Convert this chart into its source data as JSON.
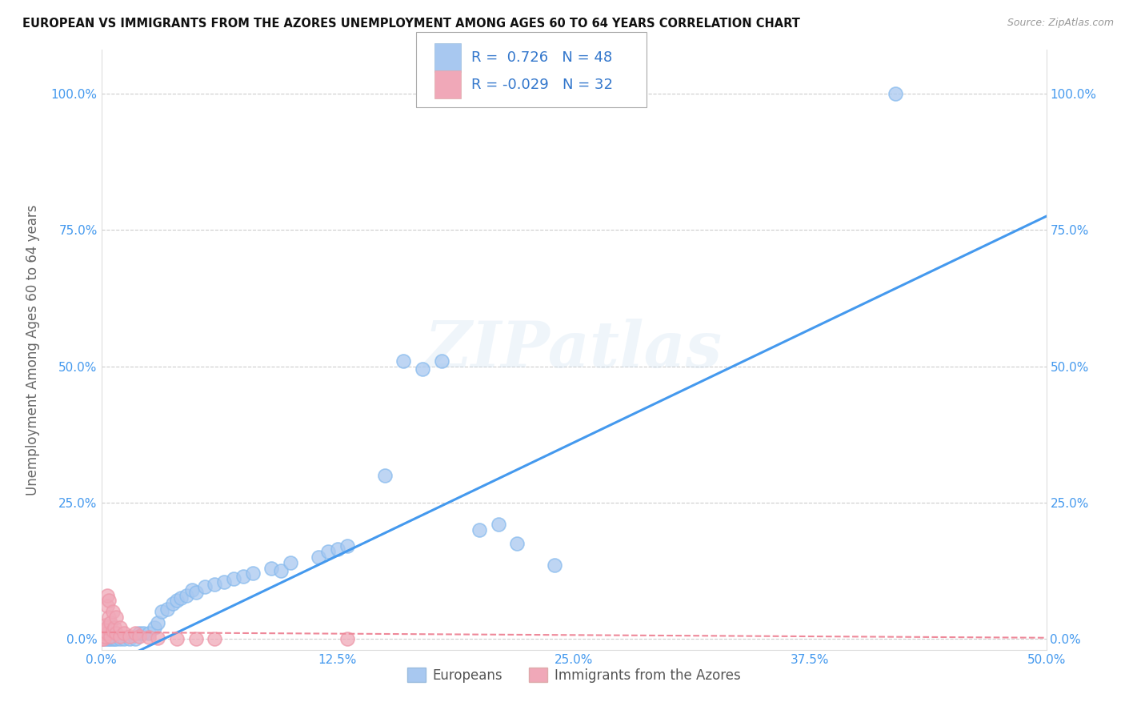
{
  "title": "EUROPEAN VS IMMIGRANTS FROM THE AZORES UNEMPLOYMENT AMONG AGES 60 TO 64 YEARS CORRELATION CHART",
  "source": "Source: ZipAtlas.com",
  "ylabel": "Unemployment Among Ages 60 to 64 years",
  "xlim": [
    0.0,
    0.5
  ],
  "ylim": [
    -0.02,
    1.08
  ],
  "xtick_labels": [
    "0.0%",
    "",
    "12.5%",
    "",
    "25.0%",
    "",
    "37.5%",
    "",
    "50.0%"
  ],
  "xtick_vals": [
    0.0,
    0.0625,
    0.125,
    0.1875,
    0.25,
    0.3125,
    0.375,
    0.4375,
    0.5
  ],
  "ytick_labels": [
    "0.0%",
    "25.0%",
    "50.0%",
    "75.0%",
    "100.0%"
  ],
  "ytick_vals": [
    0.0,
    0.25,
    0.5,
    0.75,
    1.0
  ],
  "legend_labels": [
    "Europeans",
    "Immigrants from the Azores"
  ],
  "R_european": 0.726,
  "N_european": 48,
  "R_azores": -0.029,
  "N_azores": 32,
  "european_color": "#a8c8f0",
  "azores_color": "#f0a8b8",
  "trend_blue": "#4499ee",
  "trend_pink": "#ee8899",
  "watermark": "ZIPatlas",
  "background_color": "#ffffff",
  "european_dots": [
    [
      0.0,
      0.0
    ],
    [
      0.001,
      0.0
    ],
    [
      0.002,
      0.0
    ],
    [
      0.003,
      0.0
    ],
    [
      0.004,
      0.0
    ],
    [
      0.005,
      0.0
    ],
    [
      0.006,
      0.0
    ],
    [
      0.007,
      0.0
    ],
    [
      0.008,
      0.0
    ],
    [
      0.01,
      0.0
    ],
    [
      0.012,
      0.0
    ],
    [
      0.015,
      0.0
    ],
    [
      0.018,
      0.0
    ],
    [
      0.02,
      0.01
    ],
    [
      0.022,
      0.01
    ],
    [
      0.025,
      0.01
    ],
    [
      0.028,
      0.02
    ],
    [
      0.03,
      0.03
    ],
    [
      0.032,
      0.05
    ],
    [
      0.035,
      0.055
    ],
    [
      0.038,
      0.065
    ],
    [
      0.04,
      0.07
    ],
    [
      0.042,
      0.075
    ],
    [
      0.045,
      0.08
    ],
    [
      0.048,
      0.09
    ],
    [
      0.05,
      0.085
    ],
    [
      0.055,
      0.095
    ],
    [
      0.06,
      0.1
    ],
    [
      0.065,
      0.105
    ],
    [
      0.07,
      0.11
    ],
    [
      0.075,
      0.115
    ],
    [
      0.08,
      0.12
    ],
    [
      0.09,
      0.13
    ],
    [
      0.095,
      0.125
    ],
    [
      0.1,
      0.14
    ],
    [
      0.115,
      0.15
    ],
    [
      0.12,
      0.16
    ],
    [
      0.125,
      0.165
    ],
    [
      0.13,
      0.17
    ],
    [
      0.15,
      0.3
    ],
    [
      0.16,
      0.51
    ],
    [
      0.17,
      0.495
    ],
    [
      0.18,
      0.51
    ],
    [
      0.2,
      0.2
    ],
    [
      0.21,
      0.21
    ],
    [
      0.22,
      0.175
    ],
    [
      0.24,
      0.135
    ],
    [
      0.42,
      1.0
    ]
  ],
  "azores_dots": [
    [
      0.0,
      0.0
    ],
    [
      0.0,
      0.005
    ],
    [
      0.001,
      0.0
    ],
    [
      0.001,
      0.01
    ],
    [
      0.002,
      0.005
    ],
    [
      0.002,
      0.015
    ],
    [
      0.002,
      0.025
    ],
    [
      0.003,
      0.01
    ],
    [
      0.003,
      0.02
    ],
    [
      0.003,
      0.06
    ],
    [
      0.003,
      0.08
    ],
    [
      0.004,
      0.04
    ],
    [
      0.004,
      0.07
    ],
    [
      0.005,
      0.005
    ],
    [
      0.005,
      0.03
    ],
    [
      0.006,
      0.015
    ],
    [
      0.006,
      0.05
    ],
    [
      0.007,
      0.02
    ],
    [
      0.008,
      0.01
    ],
    [
      0.008,
      0.04
    ],
    [
      0.01,
      0.005
    ],
    [
      0.01,
      0.02
    ],
    [
      0.012,
      0.01
    ],
    [
      0.015,
      0.005
    ],
    [
      0.018,
      0.01
    ],
    [
      0.02,
      0.005
    ],
    [
      0.025,
      0.003
    ],
    [
      0.03,
      0.002
    ],
    [
      0.04,
      0.0
    ],
    [
      0.05,
      0.0
    ],
    [
      0.06,
      0.0
    ],
    [
      0.13,
      0.0
    ]
  ],
  "trend_line_blue": [
    [
      0.0,
      -0.055
    ],
    [
      0.5,
      0.775
    ]
  ],
  "trend_line_pink": [
    [
      0.0,
      0.012
    ],
    [
      0.5,
      0.002
    ]
  ]
}
